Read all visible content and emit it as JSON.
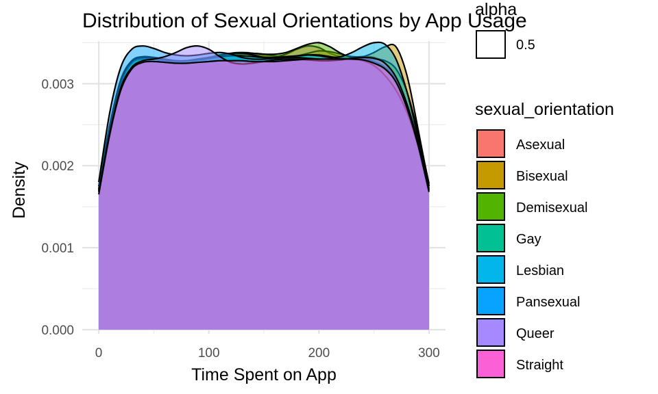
{
  "chart_data": {
    "type": "area",
    "subtype": "density",
    "title": "Distribution of Sexual Orientations by App Usage",
    "xlabel": "Time Spent on App",
    "ylabel": "Density",
    "xlim": [
      -15,
      315
    ],
    "ylim": [
      -5e-05,
      0.00352
    ],
    "x_ticks": [
      0,
      100,
      200,
      300
    ],
    "x_tick_labels": [
      "0",
      "100",
      "200",
      "300"
    ],
    "y_ticks": [
      0.0,
      0.001,
      0.002,
      0.003
    ],
    "y_tick_labels": [
      "0.000",
      "0.001",
      "0.002",
      "0.003"
    ],
    "grid": true,
    "fill_opacity": 0.5,
    "legend_alpha": {
      "title": "alpha",
      "label": "0.5"
    },
    "legend": {
      "title": "sexual_orientation",
      "position": "right"
    },
    "x": [
      0,
      10,
      20,
      30,
      40,
      50,
      60,
      70,
      80,
      90,
      100,
      110,
      120,
      130,
      140,
      150,
      160,
      170,
      180,
      190,
      200,
      210,
      220,
      230,
      240,
      250,
      260,
      270,
      280,
      290,
      300
    ],
    "series": [
      {
        "name": "Asexual",
        "color": "#F8766D",
        "values": [
          0.00175,
          0.0025,
          0.00305,
          0.00328,
          0.00333,
          0.00332,
          0.0033,
          0.00328,
          0.00327,
          0.00328,
          0.0033,
          0.00333,
          0.00337,
          0.00338,
          0.00337,
          0.00334,
          0.00333,
          0.00336,
          0.00342,
          0.00346,
          0.00344,
          0.00337,
          0.00333,
          0.00332,
          0.00333,
          0.00332,
          0.00325,
          0.003,
          0.0026,
          0.00215,
          0.00175
        ]
      },
      {
        "name": "Bisexual",
        "color": "#C49A00",
        "values": [
          0.00172,
          0.00245,
          0.003,
          0.00325,
          0.00332,
          0.0033,
          0.00326,
          0.00325,
          0.00326,
          0.00328,
          0.0033,
          0.00332,
          0.00334,
          0.00336,
          0.00337,
          0.00336,
          0.00334,
          0.00333,
          0.00334,
          0.00337,
          0.0034,
          0.00339,
          0.00336,
          0.00333,
          0.00333,
          0.00338,
          0.00345,
          0.00345,
          0.0031,
          0.00245,
          0.00175
        ]
      },
      {
        "name": "Demisexual",
        "color": "#53B400",
        "values": [
          0.0017,
          0.00248,
          0.00302,
          0.00326,
          0.00331,
          0.0033,
          0.00328,
          0.00327,
          0.00328,
          0.0033,
          0.00332,
          0.00334,
          0.00336,
          0.00337,
          0.00337,
          0.00336,
          0.00336,
          0.00338,
          0.00343,
          0.00348,
          0.0035,
          0.00345,
          0.00337,
          0.00332,
          0.0033,
          0.0033,
          0.00328,
          0.00318,
          0.0029,
          0.0024,
          0.00178
        ]
      },
      {
        "name": "Gay",
        "color": "#00C094",
        "values": [
          0.00168,
          0.00245,
          0.003,
          0.00325,
          0.0033,
          0.0033,
          0.00328,
          0.00327,
          0.00328,
          0.0033,
          0.00332,
          0.00335,
          0.00337,
          0.00337,
          0.00335,
          0.00332,
          0.0033,
          0.00331,
          0.00333,
          0.00335,
          0.00335,
          0.00333,
          0.00331,
          0.0033,
          0.00329,
          0.00327,
          0.0032,
          0.00305,
          0.00275,
          0.0023,
          0.00172
        ]
      },
      {
        "name": "Lesbian",
        "color": "#00B6EB",
        "values": [
          0.0017,
          0.00248,
          0.00303,
          0.00327,
          0.00332,
          0.00331,
          0.00329,
          0.00328,
          0.00328,
          0.00329,
          0.00331,
          0.00333,
          0.00334,
          0.00334,
          0.00333,
          0.00332,
          0.00332,
          0.00333,
          0.00334,
          0.00335,
          0.00334,
          0.00332,
          0.00333,
          0.00338,
          0.00345,
          0.0035,
          0.00348,
          0.0033,
          0.0029,
          0.00235,
          0.00175
        ]
      },
      {
        "name": "Pansexual",
        "color": "#06A4FF",
        "values": [
          0.0018,
          0.00265,
          0.0032,
          0.00342,
          0.00346,
          0.00343,
          0.00338,
          0.00335,
          0.00334,
          0.00335,
          0.00337,
          0.00338,
          0.00336,
          0.00332,
          0.0033,
          0.0033,
          0.00331,
          0.00332,
          0.00332,
          0.00331,
          0.0033,
          0.0033,
          0.0033,
          0.0033,
          0.00328,
          0.00322,
          0.0031,
          0.00292,
          0.00265,
          0.00225,
          0.00175
        ]
      },
      {
        "name": "Queer",
        "color": "#A58AFF",
        "values": [
          0.00168,
          0.0024,
          0.00295,
          0.0032,
          0.00328,
          0.0033,
          0.00333,
          0.00338,
          0.00344,
          0.00346,
          0.00342,
          0.00333,
          0.00326,
          0.00324,
          0.00325,
          0.00327,
          0.00329,
          0.0033,
          0.0033,
          0.00329,
          0.00328,
          0.00328,
          0.00329,
          0.00331,
          0.00332,
          0.00331,
          0.00325,
          0.00308,
          0.00275,
          0.00228,
          0.0017
        ]
      },
      {
        "name": "Straight",
        "color": "#FB61D7",
        "values": [
          0.00165,
          0.00238,
          0.00292,
          0.00318,
          0.00326,
          0.00327,
          0.00326,
          0.00325,
          0.00325,
          0.00326,
          0.00327,
          0.00328,
          0.00328,
          0.00328,
          0.00327,
          0.00327,
          0.00327,
          0.00328,
          0.00329,
          0.0033,
          0.0033,
          0.0033,
          0.0033,
          0.0033,
          0.00329,
          0.00325,
          0.00318,
          0.00302,
          0.0027,
          0.00225,
          0.00168
        ]
      }
    ]
  }
}
